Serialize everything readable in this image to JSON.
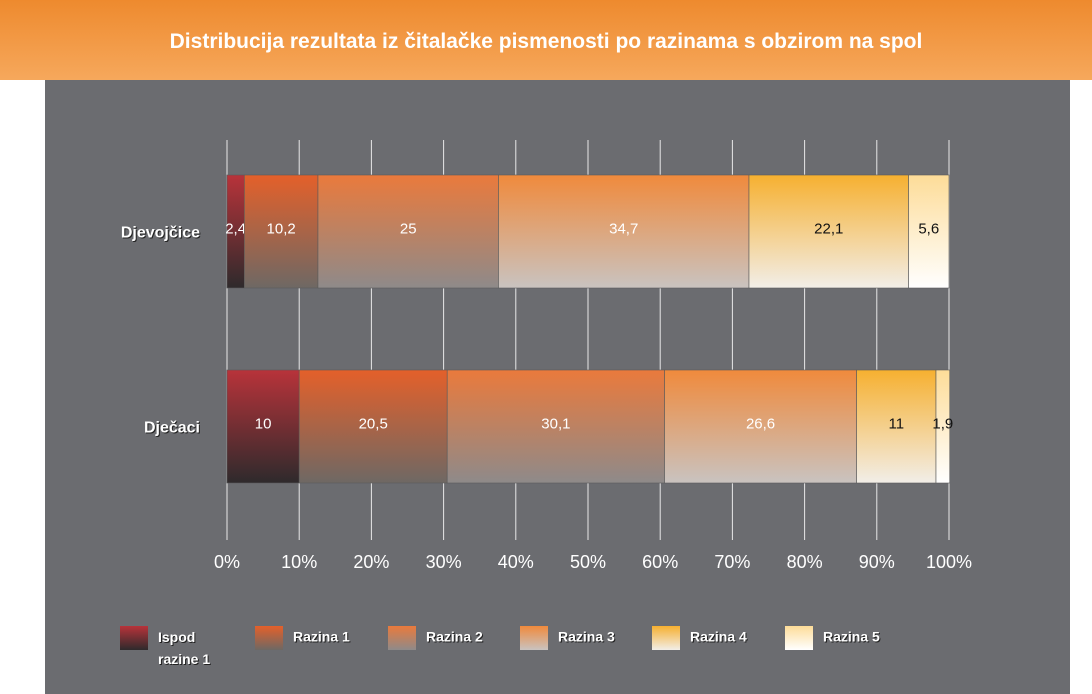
{
  "chart_data": {
    "type": "stacked_barh",
    "title": "Distribucija rezultata iz čitalačke pismenosti po razinama s obzirom na spol",
    "categories": [
      "Djevojčice",
      "Dječaci"
    ],
    "series": [
      {
        "name": "Ispod razine 1",
        "colors": [
          "#b8333a",
          "#2e2a2c"
        ],
        "label_color": "#ffffff",
        "values": [
          2.4,
          10
        ],
        "value_labels": [
          "2,4",
          "10"
        ]
      },
      {
        "name": "Razina 1",
        "colors": [
          "#e4602a",
          "#6e6864"
        ],
        "label_color": "#ffffff",
        "values": [
          10.2,
          20.5
        ],
        "value_labels": [
          "10,2",
          "20,5"
        ]
      },
      {
        "name": "Razina 2",
        "colors": [
          "#ea7a3c",
          "#8e8a8a"
        ],
        "label_color": "#ffffff",
        "values": [
          25,
          30.1
        ],
        "value_labels": [
          "25",
          "30,1"
        ]
      },
      {
        "name": "Razina 3",
        "colors": [
          "#f08a3c",
          "#c9c3c0"
        ],
        "label_color": "#ffffff",
        "values": [
          34.7,
          26.6
        ],
        "value_labels": [
          "34,7",
          "26,6"
        ]
      },
      {
        "name": "Razina 4",
        "colors": [
          "#f6b030",
          "#f2eee8"
        ],
        "label_color": "#111111",
        "values": [
          22.1,
          11
        ],
        "value_labels": [
          "22,1",
          "11"
        ]
      },
      {
        "name": "Razina 5",
        "colors": [
          "#fddc98",
          "#ffffff"
        ],
        "label_color": "#111111",
        "values": [
          5.6,
          1.9
        ],
        "value_labels": [
          "5,6",
          "1,9"
        ]
      }
    ],
    "xlim": [
      0,
      100
    ],
    "xticks": [
      {
        "value": 0,
        "label": "0%"
      },
      {
        "value": 10,
        "label": "10%"
      },
      {
        "value": 20,
        "label": "20%"
      },
      {
        "value": 30,
        "label": "30%"
      },
      {
        "value": 40,
        "label": "40%"
      },
      {
        "value": 50,
        "label": "50%"
      },
      {
        "value": 60,
        "label": "60%"
      },
      {
        "value": 70,
        "label": "70%"
      },
      {
        "value": 80,
        "label": "80%"
      },
      {
        "value": 90,
        "label": "90%"
      },
      {
        "value": 100,
        "label": "100%"
      }
    ],
    "grid": true
  }
}
